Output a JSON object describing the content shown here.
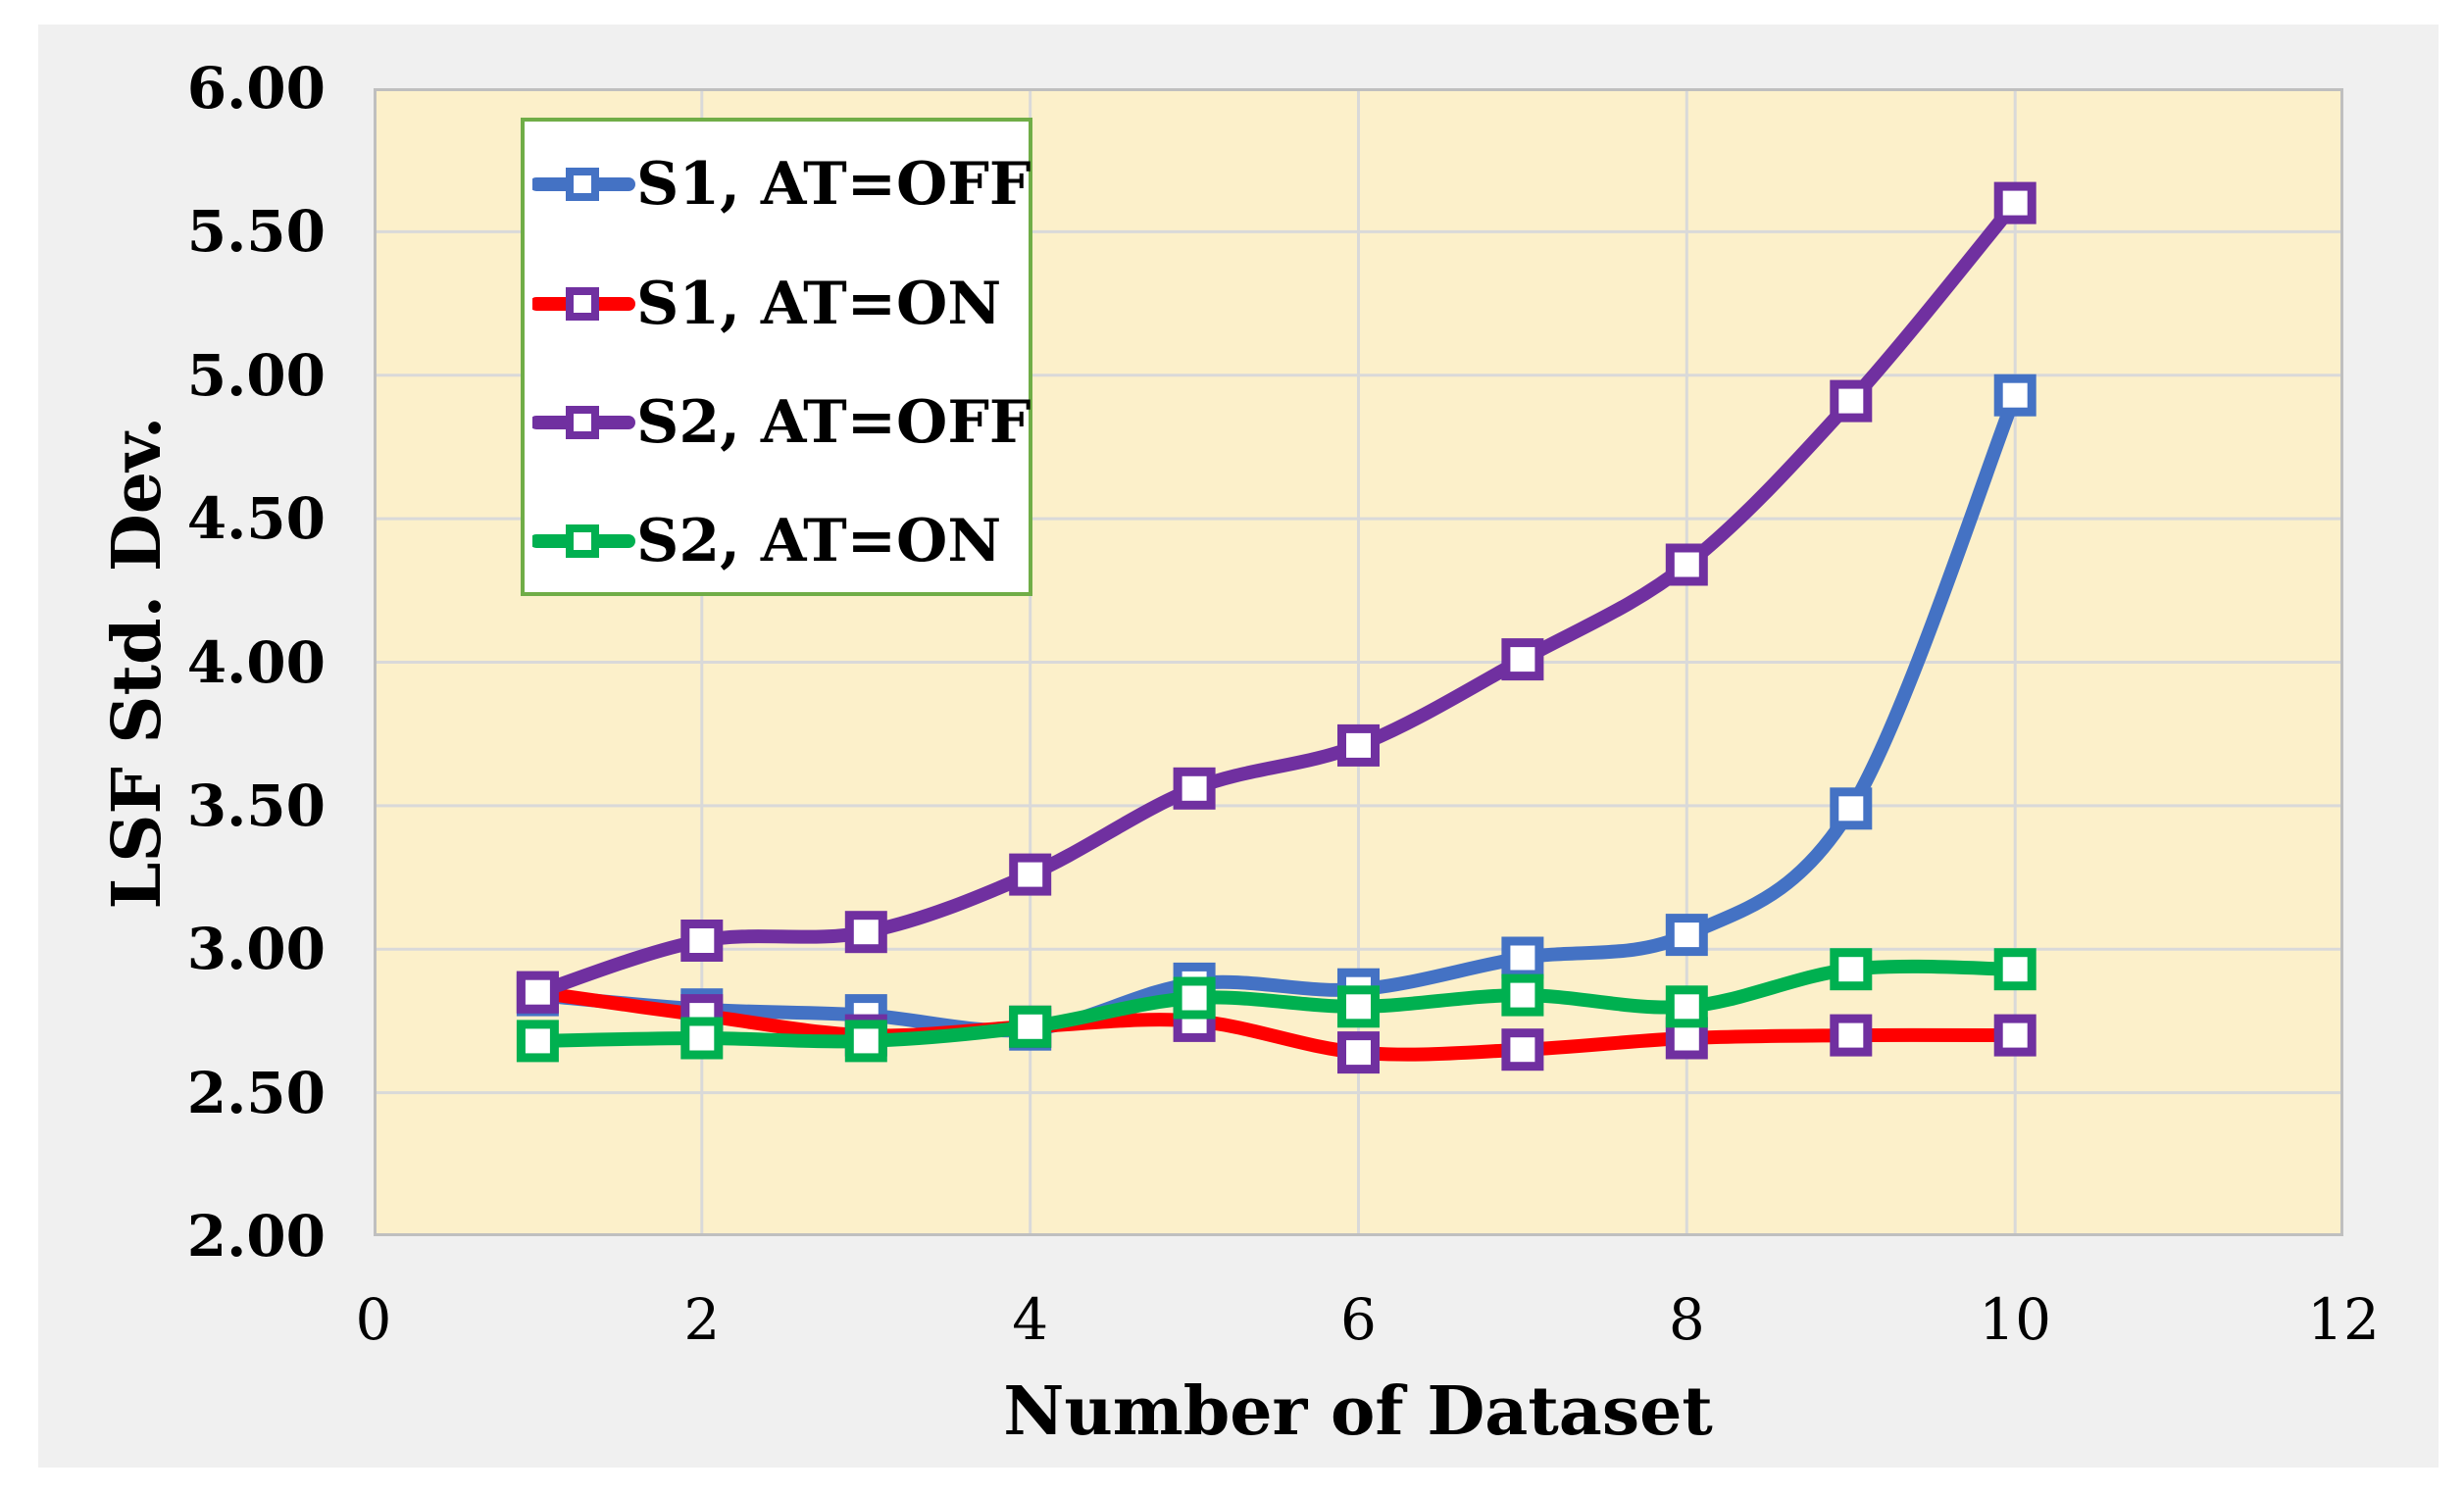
{
  "figure": {
    "page_background": "#ffffff",
    "panel_background": "#f0f0f0"
  },
  "chart_data": {
    "type": "line",
    "title": "",
    "xlabel": "Number of Dataset",
    "ylabel": "LSF Std. Dev.",
    "xlim": [
      0,
      12
    ],
    "ylim": [
      2.0,
      6.0
    ],
    "x_ticks": [
      "0",
      "2",
      "4",
      "6",
      "8",
      "10",
      "12"
    ],
    "x_tick_values": [
      0,
      2,
      4,
      6,
      8,
      10,
      12
    ],
    "y_ticks": [
      "2.00",
      "2.50",
      "3.00",
      "3.50",
      "4.00",
      "4.50",
      "5.00",
      "5.50",
      "6.00"
    ],
    "y_tick_values": [
      2.0,
      2.5,
      3.0,
      3.5,
      4.0,
      4.5,
      5.0,
      5.5,
      6.0
    ],
    "grid": true,
    "legend_position": "top-left",
    "marker_shape": "square",
    "x": [
      1,
      2,
      3,
      4,
      5,
      6,
      7,
      8,
      9,
      10
    ],
    "series": [
      {
        "name": "S1, AT=OFF",
        "line_color": "#4472C4",
        "marker_color": "#4472C4",
        "values": [
          2.84,
          2.79,
          2.77,
          2.72,
          2.88,
          2.86,
          2.97,
          3.05,
          3.49,
          4.93
        ]
      },
      {
        "name": "S1, AT=ON",
        "line_color": "#FF0000",
        "marker_color": "#7030A0",
        "values": [
          2.85,
          2.77,
          2.7,
          2.73,
          2.75,
          2.64,
          2.65,
          2.69,
          2.7,
          2.7
        ]
      },
      {
        "name": "S2, AT=OFF",
        "line_color": "#7030A0",
        "marker_color": "#7030A0",
        "values": [
          2.85,
          3.03,
          3.06,
          3.26,
          3.56,
          3.71,
          4.01,
          4.34,
          4.91,
          5.6
        ]
      },
      {
        "name": "S2, AT=ON",
        "line_color": "#00B050",
        "marker_color": "#00B050",
        "values": [
          2.68,
          2.69,
          2.68,
          2.73,
          2.83,
          2.8,
          2.84,
          2.8,
          2.93,
          2.93
        ]
      }
    ],
    "plot_background": "#FCF0CA",
    "gridline_color": "#D9D9D9",
    "axis_line_color": "#BFBFBF",
    "legend_border_color": "#70AD47",
    "legend_background": "#FFFFFF",
    "text_color": "#000000"
  }
}
